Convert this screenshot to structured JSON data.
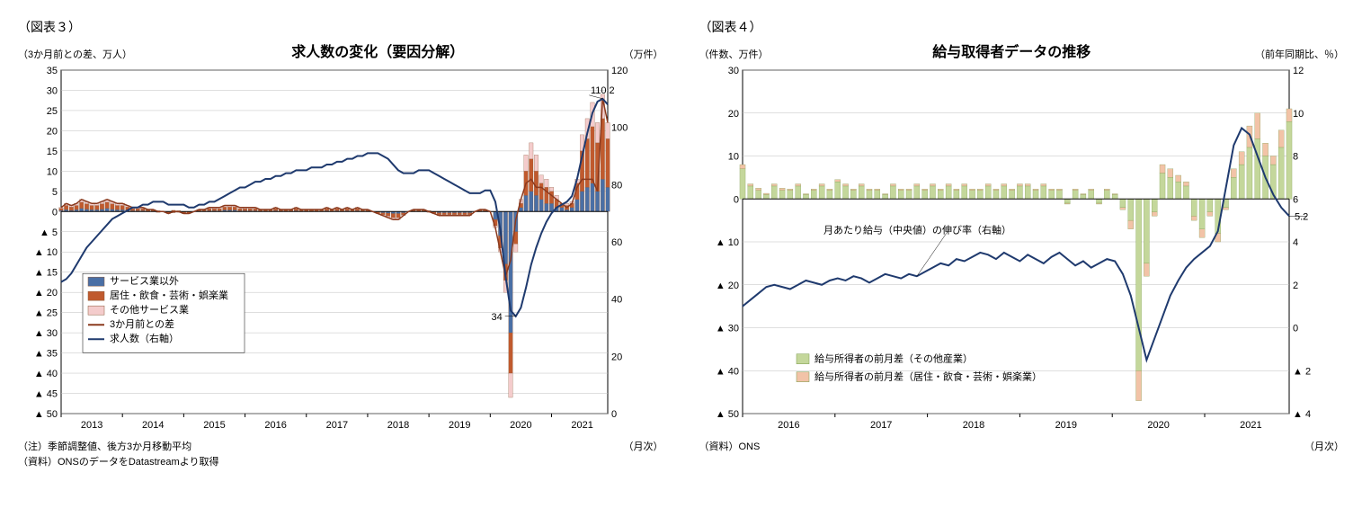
{
  "chart3": {
    "figure_label": "（図表３）",
    "title": "求人数の変化（要因分解）",
    "left_axis_label": "（3か月前との差、万人）",
    "right_axis_label": "（万件）",
    "xaxis_label": "（月次）",
    "footnote1": "（注）季節調整値、後方3か月移動平均",
    "footnote2": "（資料）ONSのデータをDatastreamより取得",
    "left_ylim": [
      -50,
      35
    ],
    "left_ticks": [
      35,
      30,
      25,
      20,
      15,
      10,
      5,
      0,
      -5,
      -10,
      -15,
      -20,
      -25,
      -30,
      -35,
      -40,
      -45,
      -50
    ],
    "right_ylim": [
      0,
      120
    ],
    "right_ticks": [
      120,
      100,
      80,
      60,
      40,
      20,
      0
    ],
    "x_years": [
      "2013",
      "2014",
      "2015",
      "2016",
      "2017",
      "2018",
      "2019",
      "2020",
      "2021"
    ],
    "annotation_high": "110.2",
    "annotation_low": "34",
    "legend": {
      "s1": "サービス業以外",
      "s2": "居住・飲食・芸術・娯楽業",
      "s3": "その他サービス業",
      "s4": "3か月前との差",
      "s5": "求人数（右軸）"
    },
    "colors": {
      "bar_nonservice": "#4a6fa5",
      "bar_hospitality": "#c05a2e",
      "bar_other": "#f4cccc",
      "line_diff": "#8b3a1e",
      "line_total": "#1f3a6e",
      "grid": "#bfbfbf",
      "border": "#000000",
      "background": "#ffffff"
    },
    "line_total_values": [
      46,
      47,
      49,
      52,
      55,
      58,
      60,
      62,
      64,
      66,
      68,
      69,
      70,
      71,
      72,
      72,
      73,
      73,
      74,
      74,
      74,
      73,
      73,
      73,
      73,
      72,
      72,
      73,
      73,
      74,
      74,
      75,
      76,
      77,
      78,
      79,
      79,
      80,
      81,
      81,
      82,
      82,
      83,
      83,
      84,
      84,
      85,
      85,
      85,
      86,
      86,
      86,
      87,
      87,
      88,
      88,
      89,
      89,
      90,
      90,
      91,
      91,
      91,
      90,
      89,
      87,
      85,
      84,
      84,
      84,
      85,
      85,
      85,
      84,
      83,
      82,
      81,
      80,
      79,
      78,
      77,
      77,
      77,
      78,
      78,
      74,
      64,
      48,
      36,
      34,
      37,
      44,
      52,
      58,
      63,
      67,
      70,
      72,
      73,
      74,
      76,
      82,
      90,
      98,
      105,
      109,
      110,
      108
    ],
    "line_diff_values": [
      1,
      2,
      1.5,
      2,
      3,
      2.5,
      2,
      2,
      2.5,
      3,
      2.5,
      2,
      2,
      1.5,
      1,
      1,
      1,
      0.5,
      0.5,
      0,
      0,
      -0.5,
      0,
      0,
      -0.5,
      -0.5,
      0,
      0.5,
      0.5,
      1,
      1,
      1,
      1.5,
      1.5,
      1.5,
      1,
      1,
      1,
      1,
      0.5,
      0.5,
      0.5,
      1,
      0.5,
      0.5,
      0.5,
      1,
      0.5,
      0.5,
      0.5,
      0.5,
      0.5,
      1,
      0.5,
      1,
      0.5,
      1,
      0.5,
      1,
      0.5,
      0.5,
      0,
      -0.5,
      -1,
      -1.5,
      -2,
      -2,
      -1,
      0,
      0.5,
      0.5,
      0.5,
      0,
      -0.5,
      -1,
      -1,
      -1,
      -1,
      -1,
      -1,
      -1,
      0,
      0.5,
      0.5,
      0,
      -4,
      -10,
      -16,
      -12,
      -2,
      3,
      7,
      8,
      6,
      6,
      5,
      4,
      3,
      2,
      1,
      2,
      6,
      8,
      8,
      8,
      5,
      28,
      22
    ],
    "bars": [
      {
        "a": 0.3,
        "b": 0.5,
        "c": 0.2
      },
      {
        "a": 0.5,
        "b": 1.0,
        "c": 0.5
      },
      {
        "a": 0.3,
        "b": 0.8,
        "c": 0.4
      },
      {
        "a": 0.5,
        "b": 1.0,
        "c": 0.5
      },
      {
        "a": 0.8,
        "b": 1.5,
        "c": 0.7
      },
      {
        "a": 0.6,
        "b": 1.3,
        "c": 0.6
      },
      {
        "a": 0.5,
        "b": 1.0,
        "c": 0.5
      },
      {
        "a": 0.5,
        "b": 1.0,
        "c": 0.5
      },
      {
        "a": 0.6,
        "b": 1.3,
        "c": 0.6
      },
      {
        "a": 0.8,
        "b": 1.5,
        "c": 0.7
      },
      {
        "a": 0.6,
        "b": 1.3,
        "c": 0.6
      },
      {
        "a": 0.5,
        "b": 1.0,
        "c": 0.5
      },
      {
        "a": 0.5,
        "b": 1.0,
        "c": 0.5
      },
      {
        "a": 0.4,
        "b": 0.7,
        "c": 0.4
      },
      {
        "a": 0.2,
        "b": 0.5,
        "c": 0.3
      },
      {
        "a": 0.2,
        "b": 0.5,
        "c": 0.3
      },
      {
        "a": 0.2,
        "b": 0.5,
        "c": 0.3
      },
      {
        "a": 0.1,
        "b": 0.3,
        "c": 0.1
      },
      {
        "a": 0.1,
        "b": 0.3,
        "c": 0.1
      },
      {
        "a": -0.1,
        "b": 0.2,
        "c": -0.1
      },
      {
        "a": 0,
        "b": 0,
        "c": 0
      },
      {
        "a": -0.1,
        "b": -0.3,
        "c": -0.1
      },
      {
        "a": -0.2,
        "b": 0.3,
        "c": -0.1
      },
      {
        "a": -0.1,
        "b": 0.2,
        "c": -0.1
      },
      {
        "a": -0.1,
        "b": -0.3,
        "c": -0.1
      },
      {
        "a": -0.1,
        "b": -0.3,
        "c": -0.1
      },
      {
        "a": 0,
        "b": 0,
        "c": 0
      },
      {
        "a": 0.1,
        "b": 0.3,
        "c": 0.1
      },
      {
        "a": 0.1,
        "b": 0.3,
        "c": 0.1
      },
      {
        "a": 0.2,
        "b": 0.5,
        "c": 0.3
      },
      {
        "a": 0.2,
        "b": 0.5,
        "c": 0.3
      },
      {
        "a": 0.2,
        "b": 0.5,
        "c": 0.3
      },
      {
        "a": 0.4,
        "b": 0.7,
        "c": 0.4
      },
      {
        "a": 0.4,
        "b": 0.7,
        "c": 0.4
      },
      {
        "a": 0.4,
        "b": 0.7,
        "c": 0.4
      },
      {
        "a": 0.2,
        "b": 0.5,
        "c": 0.3
      },
      {
        "a": 0.2,
        "b": 0.5,
        "c": 0.3
      },
      {
        "a": 0.2,
        "b": 0.5,
        "c": 0.3
      },
      {
        "a": 0.2,
        "b": 0.5,
        "c": 0.3
      },
      {
        "a": 0.1,
        "b": 0.3,
        "c": 0.1
      },
      {
        "a": 0.1,
        "b": 0.3,
        "c": 0.1
      },
      {
        "a": 0.1,
        "b": 0.3,
        "c": 0.1
      },
      {
        "a": 0.2,
        "b": 0.5,
        "c": 0.3
      },
      {
        "a": 0.1,
        "b": 0.3,
        "c": 0.1
      },
      {
        "a": 0.1,
        "b": 0.3,
        "c": 0.1
      },
      {
        "a": 0.1,
        "b": 0.3,
        "c": 0.1
      },
      {
        "a": 0.2,
        "b": 0.5,
        "c": 0.3
      },
      {
        "a": 0.1,
        "b": 0.3,
        "c": 0.1
      },
      {
        "a": 0.1,
        "b": 0.3,
        "c": 0.1
      },
      {
        "a": 0.1,
        "b": 0.3,
        "c": 0.1
      },
      {
        "a": 0.1,
        "b": 0.3,
        "c": 0.1
      },
      {
        "a": 0.1,
        "b": 0.3,
        "c": 0.1
      },
      {
        "a": 0.2,
        "b": 0.5,
        "c": 0.3
      },
      {
        "a": 0.1,
        "b": 0.3,
        "c": 0.1
      },
      {
        "a": 0.2,
        "b": 0.5,
        "c": 0.3
      },
      {
        "a": 0.1,
        "b": 0.3,
        "c": 0.1
      },
      {
        "a": 0.2,
        "b": 0.5,
        "c": 0.3
      },
      {
        "a": 0.1,
        "b": 0.3,
        "c": 0.1
      },
      {
        "a": 0.2,
        "b": 0.5,
        "c": 0.3
      },
      {
        "a": 0.1,
        "b": 0.3,
        "c": 0.1
      },
      {
        "a": 0.1,
        "b": 0.3,
        "c": 0.1
      },
      {
        "a": 0,
        "b": 0,
        "c": 0
      },
      {
        "a": -0.1,
        "b": -0.3,
        "c": -0.1
      },
      {
        "a": -0.3,
        "b": -0.5,
        "c": -0.2
      },
      {
        "a": -0.4,
        "b": -0.7,
        "c": -0.4
      },
      {
        "a": -0.5,
        "b": -1.0,
        "c": -0.5
      },
      {
        "a": -0.5,
        "b": -1.0,
        "c": -0.5
      },
      {
        "a": -0.3,
        "b": -0.5,
        "c": -0.2
      },
      {
        "a": 0,
        "b": 0,
        "c": 0
      },
      {
        "a": 0.1,
        "b": 0.3,
        "c": 0.1
      },
      {
        "a": 0.1,
        "b": 0.3,
        "c": 0.1
      },
      {
        "a": 0.1,
        "b": 0.3,
        "c": 0.1
      },
      {
        "a": 0.1,
        "b": 0.1,
        "c": -0.2
      },
      {
        "a": -0.1,
        "b": -0.3,
        "c": -0.1
      },
      {
        "a": -0.3,
        "b": -0.5,
        "c": -0.2
      },
      {
        "a": -0.3,
        "b": -0.5,
        "c": -0.2
      },
      {
        "a": -0.3,
        "b": -0.5,
        "c": -0.2
      },
      {
        "a": -0.3,
        "b": -0.5,
        "c": -0.2
      },
      {
        "a": -0.3,
        "b": -0.5,
        "c": -0.2
      },
      {
        "a": -0.3,
        "b": -0.5,
        "c": -0.2
      },
      {
        "a": -0.3,
        "b": -0.5,
        "c": -0.2
      },
      {
        "a": 0,
        "b": 0,
        "c": 0
      },
      {
        "a": 0.1,
        "b": 0.3,
        "c": 0.1
      },
      {
        "a": 0.1,
        "b": 0.3,
        "c": 0.1
      },
      {
        "a": 0,
        "b": 0,
        "c": 0
      },
      {
        "a": -2,
        "b": -1.5,
        "c": -0.5
      },
      {
        "a": -6,
        "b": -3,
        "c": -1
      },
      {
        "a": -13,
        "b": -4,
        "c": -3
      },
      {
        "a": -30,
        "b": -10,
        "c": -6
      },
      {
        "a": -5,
        "b": -3,
        "c": -2
      },
      {
        "a": 1,
        "b": 1,
        "c": 1
      },
      {
        "a": 4,
        "b": 6,
        "c": 4
      },
      {
        "a": 5,
        "b": 8,
        "c": 4
      },
      {
        "a": 4,
        "b": 6,
        "c": 4
      },
      {
        "a": 3,
        "b": 4,
        "c": 2
      },
      {
        "a": 2,
        "b": 4,
        "c": 2
      },
      {
        "a": 2,
        "b": 3,
        "c": 1
      },
      {
        "a": 1,
        "b": 2,
        "c": 1
      },
      {
        "a": 1,
        "b": 1,
        "c": 0
      },
      {
        "a": 0.5,
        "b": 1,
        "c": 0.5
      },
      {
        "a": 1,
        "b": 1,
        "c": 0.5
      },
      {
        "a": 3,
        "b": 4,
        "c": 1
      },
      {
        "a": 5,
        "b": 10,
        "c": 4
      },
      {
        "a": 6,
        "b": 12,
        "c": 5
      },
      {
        "a": 7,
        "b": 14,
        "c": 6
      },
      {
        "a": 5,
        "b": 12,
        "c": 5
      },
      {
        "a": 8,
        "b": 15,
        "c": 6
      },
      {
        "a": 6,
        "b": 12,
        "c": 4
      }
    ]
  },
  "chart4": {
    "figure_label": "（図表４）",
    "title": "給与取得者データの推移",
    "left_axis_label": "（件数、万件）",
    "right_axis_label": "（前年同期比、％）",
    "xaxis_label": "（月次）",
    "footnote1": "（資料）ONS",
    "left_ylim": [
      -50,
      30
    ],
    "left_ticks": [
      30,
      20,
      10,
      0,
      -10,
      -20,
      -30,
      -40,
      -50
    ],
    "right_ylim": [
      -4,
      12
    ],
    "right_ticks": [
      12,
      10,
      8,
      6,
      4,
      2,
      0,
      -2,
      -4
    ],
    "x_years": [
      "2016",
      "2017",
      "2018",
      "2019",
      "2020",
      "2021"
    ],
    "annotation_label": "月あたり給与（中央値）の伸び率（右軸）",
    "annotation_value": "5.2",
    "legend": {
      "s1": "給与所得者の前月差（その他産業）",
      "s2": "給与所得者の前月差（居住・飲食・芸術・娯楽業）"
    },
    "colors": {
      "bar_other": "#c4d79b",
      "bar_hospitality": "#f2c3a7",
      "line": "#1f3a6e",
      "grid": "#bfbfbf",
      "border": "#000000",
      "background": "#ffffff"
    },
    "line_values": [
      1.0,
      1.3,
      1.6,
      1.9,
      2.0,
      1.9,
      1.8,
      2.0,
      2.2,
      2.1,
      2.0,
      2.2,
      2.3,
      2.2,
      2.4,
      2.3,
      2.1,
      2.3,
      2.5,
      2.4,
      2.3,
      2.5,
      2.4,
      2.6,
      2.8,
      3.0,
      2.9,
      3.2,
      3.1,
      3.3,
      3.5,
      3.4,
      3.2,
      3.5,
      3.3,
      3.1,
      3.4,
      3.2,
      3.0,
      3.3,
      3.5,
      3.2,
      2.9,
      3.1,
      2.8,
      3.0,
      3.2,
      3.1,
      2.5,
      1.5,
      0.0,
      -1.5,
      -0.5,
      0.5,
      1.5,
      2.2,
      2.8,
      3.2,
      3.5,
      3.8,
      4.5,
      6.5,
      8.5,
      9.3,
      9.0,
      8.0,
      7.0,
      6.2,
      5.6,
      5.2
    ],
    "bars": [
      {
        "o": 7,
        "h": 1
      },
      {
        "o": 3,
        "h": 0.5
      },
      {
        "o": 2,
        "h": 0.5
      },
      {
        "o": 1,
        "h": 0.3
      },
      {
        "o": 3,
        "h": 0.5
      },
      {
        "o": 2,
        "h": 0.5
      },
      {
        "o": 2,
        "h": 0.3
      },
      {
        "o": 3,
        "h": 0.5
      },
      {
        "o": 1,
        "h": 0.2
      },
      {
        "o": 2,
        "h": 0.3
      },
      {
        "o": 3,
        "h": 0.5
      },
      {
        "o": 2,
        "h": 0.3
      },
      {
        "o": 4,
        "h": 0.5
      },
      {
        "o": 3,
        "h": 0.5
      },
      {
        "o": 2,
        "h": 0.3
      },
      {
        "o": 3,
        "h": 0.5
      },
      {
        "o": 2,
        "h": 0.3
      },
      {
        "o": 2,
        "h": 0.3
      },
      {
        "o": 1,
        "h": 0.2
      },
      {
        "o": 3,
        "h": 0.5
      },
      {
        "o": 2,
        "h": 0.3
      },
      {
        "o": 2,
        "h": 0.3
      },
      {
        "o": 3,
        "h": 0.5
      },
      {
        "o": 2,
        "h": 0.3
      },
      {
        "o": 3,
        "h": 0.5
      },
      {
        "o": 2,
        "h": 0.3
      },
      {
        "o": 3,
        "h": 0.5
      },
      {
        "o": 2,
        "h": 0.3
      },
      {
        "o": 3,
        "h": 0.5
      },
      {
        "o": 2,
        "h": 0.3
      },
      {
        "o": 2,
        "h": 0.3
      },
      {
        "o": 3,
        "h": 0.5
      },
      {
        "o": 2,
        "h": 0.3
      },
      {
        "o": 3,
        "h": 0.5
      },
      {
        "o": 2,
        "h": 0.3
      },
      {
        "o": 3,
        "h": 0.5
      },
      {
        "o": 3,
        "h": 0.5
      },
      {
        "o": 2,
        "h": 0.3
      },
      {
        "o": 3,
        "h": 0.5
      },
      {
        "o": 2,
        "h": 0.3
      },
      {
        "o": 2,
        "h": 0.3
      },
      {
        "o": -1,
        "h": -0.2
      },
      {
        "o": 2,
        "h": 0.3
      },
      {
        "o": 1,
        "h": 0.2
      },
      {
        "o": 2,
        "h": 0.3
      },
      {
        "o": -1,
        "h": -0.2
      },
      {
        "o": 2,
        "h": 0.3
      },
      {
        "o": 1,
        "h": 0.2
      },
      {
        "o": -2,
        "h": -0.5
      },
      {
        "o": -5,
        "h": -2
      },
      {
        "o": -40,
        "h": -7
      },
      {
        "o": -15,
        "h": -3
      },
      {
        "o": -3,
        "h": -1
      },
      {
        "o": 6,
        "h": 2
      },
      {
        "o": 5,
        "h": 2
      },
      {
        "o": 4,
        "h": 1.5
      },
      {
        "o": 3,
        "h": 1
      },
      {
        "o": -4,
        "h": -1
      },
      {
        "o": -7,
        "h": -2
      },
      {
        "o": -3,
        "h": -1
      },
      {
        "o": -8,
        "h": -2
      },
      {
        "o": -2,
        "h": -0.5
      },
      {
        "o": 5,
        "h": 2
      },
      {
        "o": 8,
        "h": 3
      },
      {
        "o": 12,
        "h": 5
      },
      {
        "o": 14,
        "h": 6
      },
      {
        "o": 10,
        "h": 3
      },
      {
        "o": 8,
        "h": 2
      },
      {
        "o": 12,
        "h": 4
      },
      {
        "o": 18,
        "h": 3
      }
    ]
  }
}
